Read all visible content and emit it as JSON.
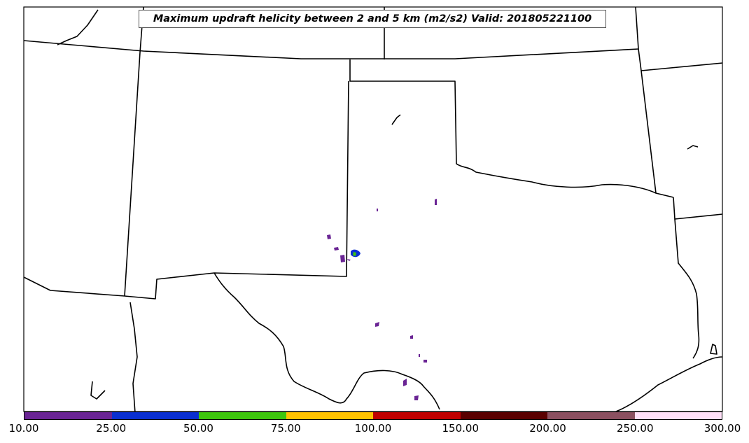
{
  "title": "Maximum updraft helicity between 2 and 5 km (m2/s2) Valid: 201805221100",
  "colorbar": {
    "levels": [
      "10.00",
      "25.00",
      "50.00",
      "75.00",
      "100.00",
      "150.00",
      "200.00",
      "250.00",
      "300.00"
    ],
    "colors": [
      "#6a2494",
      "#0a2fd0",
      "#3ec50e",
      "#ffc200",
      "#c00000",
      "#5a0000",
      "#8b5060",
      "#ffe0f8"
    ]
  }
}
